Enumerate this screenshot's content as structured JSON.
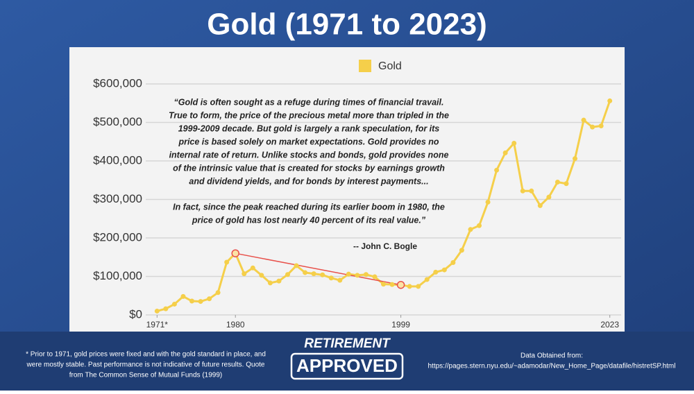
{
  "header": {
    "title": "Gold (1971 to 2023)"
  },
  "chart_data": {
    "type": "line",
    "legend_label": "Gold",
    "series": [
      {
        "name": "Gold",
        "color": "#f5cf4a",
        "values": [
          10000,
          16000,
          28000,
          48000,
          36000,
          35000,
          42000,
          58000,
          137000,
          160000,
          107000,
          122000,
          103000,
          83000,
          88000,
          105000,
          128000,
          110000,
          107000,
          104000,
          96000,
          90000,
          106000,
          103000,
          105000,
          99000,
          80000,
          79000,
          78000,
          74000,
          74000,
          92000,
          111000,
          117000,
          136000,
          168000,
          222000,
          232000,
          293000,
          376000,
          421000,
          446000,
          322000,
          322000,
          284000,
          306000,
          345000,
          341000,
          406000,
          506000,
          488000,
          491000,
          556000
        ]
      }
    ],
    "x": [
      1971,
      1972,
      1973,
      1974,
      1975,
      1976,
      1977,
      1978,
      1979,
      1980,
      1981,
      1982,
      1983,
      1984,
      1985,
      1986,
      1987,
      1988,
      1989,
      1990,
      1991,
      1992,
      1993,
      1994,
      1995,
      1996,
      1997,
      1998,
      1999,
      2000,
      2001,
      2002,
      2003,
      2004,
      2005,
      2006,
      2007,
      2008,
      2009,
      2010,
      2011,
      2012,
      2013,
      2014,
      2015,
      2016,
      2017,
      2018,
      2019,
      2020,
      2021,
      2022,
      2023
    ],
    "xlim": [
      1969.7,
      2024.3
    ],
    "xticks": [
      {
        "value": 1971,
        "label": "1971*"
      },
      1980,
      1999,
      2023
    ],
    "ylim": [
      0,
      600000
    ],
    "yticks": [
      {
        "value": 0,
        "label": "$0"
      },
      {
        "value": 100000,
        "label": "$100,000"
      },
      {
        "value": 200000,
        "label": "$200,000"
      },
      {
        "value": 300000,
        "label": "$300,000"
      },
      {
        "value": 400000,
        "label": "$400,000"
      },
      {
        "value": 500000,
        "label": "$500,000"
      },
      {
        "value": 600000,
        "label": "$600,000"
      }
    ],
    "grid": true,
    "highlight_color": "#e8504a",
    "highlight_x": [
      1980,
      1999
    ],
    "quote": [
      "“Gold is often sought as a refuge during times of financial travail.",
      "True to form, the price of the precious metal more than tripled in the",
      "1999-2009 decade. But gold is largely a rank speculation, for its",
      "price is based solely on market expectations. Gold provides no",
      "internal rate of return. Unlike stocks and bonds, gold provides none",
      "of the intrinsic value that is created for stocks by earnings growth",
      "and dividend yields, and for bonds by interest payments...",
      "In fact, since the peak reached during its earlier boom in 1980, the",
      "price of gold has lost nearly 40 percent of its real value.”"
    ],
    "attribution": "-- John C. Bogle"
  },
  "footer": {
    "note": [
      "* Prior to 1971, gold prices were fixed and with the gold standard in place, and",
      "were mostly stable. Past performance is not indicative of future results. Quote",
      "from The Common Sense of Mutual Funds (1999)"
    ],
    "logo": [
      "RETIREMENT",
      "APPROVED"
    ],
    "source": [
      "Data Obtained from:",
      "https://pages.stern.nyu.edu/~adamodar/New_Home_Page/datafile/histretSP.html"
    ]
  }
}
